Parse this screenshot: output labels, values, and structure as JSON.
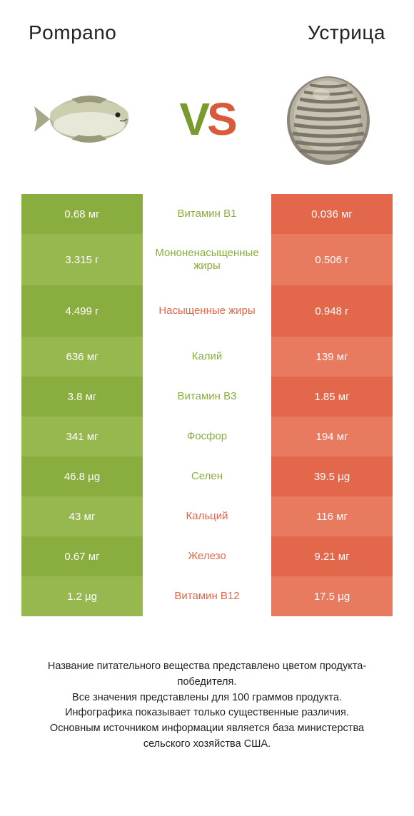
{
  "colors": {
    "green": "#8aad3f",
    "green_light": "#96b84e",
    "orange": "#e2674b",
    "orange_light": "#e87a5f",
    "background": "#ffffff"
  },
  "typography": {
    "title_fontsize": 28,
    "vs_fontsize": 64,
    "cell_fontsize": 15,
    "footer_fontsize": 14.5
  },
  "header": {
    "left_title": "Pompano",
    "right_title": "Устрица",
    "vs_v": "V",
    "vs_s": "S"
  },
  "rows": [
    {
      "left": "0.68 мг",
      "mid": "Витамин B1",
      "right": "0.036 мг",
      "winner": "left",
      "tall": false
    },
    {
      "left": "3.315 г",
      "mid": "Мононенасыщенные жиры",
      "right": "0.506 г",
      "winner": "left",
      "tall": true
    },
    {
      "left": "4.499 г",
      "mid": "Насыщенные жиры",
      "right": "0.948 г",
      "winner": "right",
      "tall": true
    },
    {
      "left": "636 мг",
      "mid": "Калий",
      "right": "139 мг",
      "winner": "left",
      "tall": false
    },
    {
      "left": "3.8 мг",
      "mid": "Витамин B3",
      "right": "1.85 мг",
      "winner": "left",
      "tall": false
    },
    {
      "left": "341 мг",
      "mid": "Фосфор",
      "right": "194 мг",
      "winner": "left",
      "tall": false
    },
    {
      "left": "46.8 µg",
      "mid": "Селен",
      "right": "39.5 µg",
      "winner": "left",
      "tall": false
    },
    {
      "left": "43 мг",
      "mid": "Кальций",
      "right": "116 мг",
      "winner": "right",
      "tall": false
    },
    {
      "left": "0.67 мг",
      "mid": "Железо",
      "right": "9.21 мг",
      "winner": "right",
      "tall": false
    },
    {
      "left": "1.2 µg",
      "mid": "Витамин B12",
      "right": "17.5 µg",
      "winner": "right",
      "tall": false
    }
  ],
  "footer": {
    "line1": "Название питательного вещества представлено цветом продукта-победителя.",
    "line2": "Все значения представлены для 100 граммов продукта.",
    "line3": "Инфографика показывает только существенные различия.",
    "line4": "Основным источником информации является база министерства сельского хозяйства США."
  }
}
